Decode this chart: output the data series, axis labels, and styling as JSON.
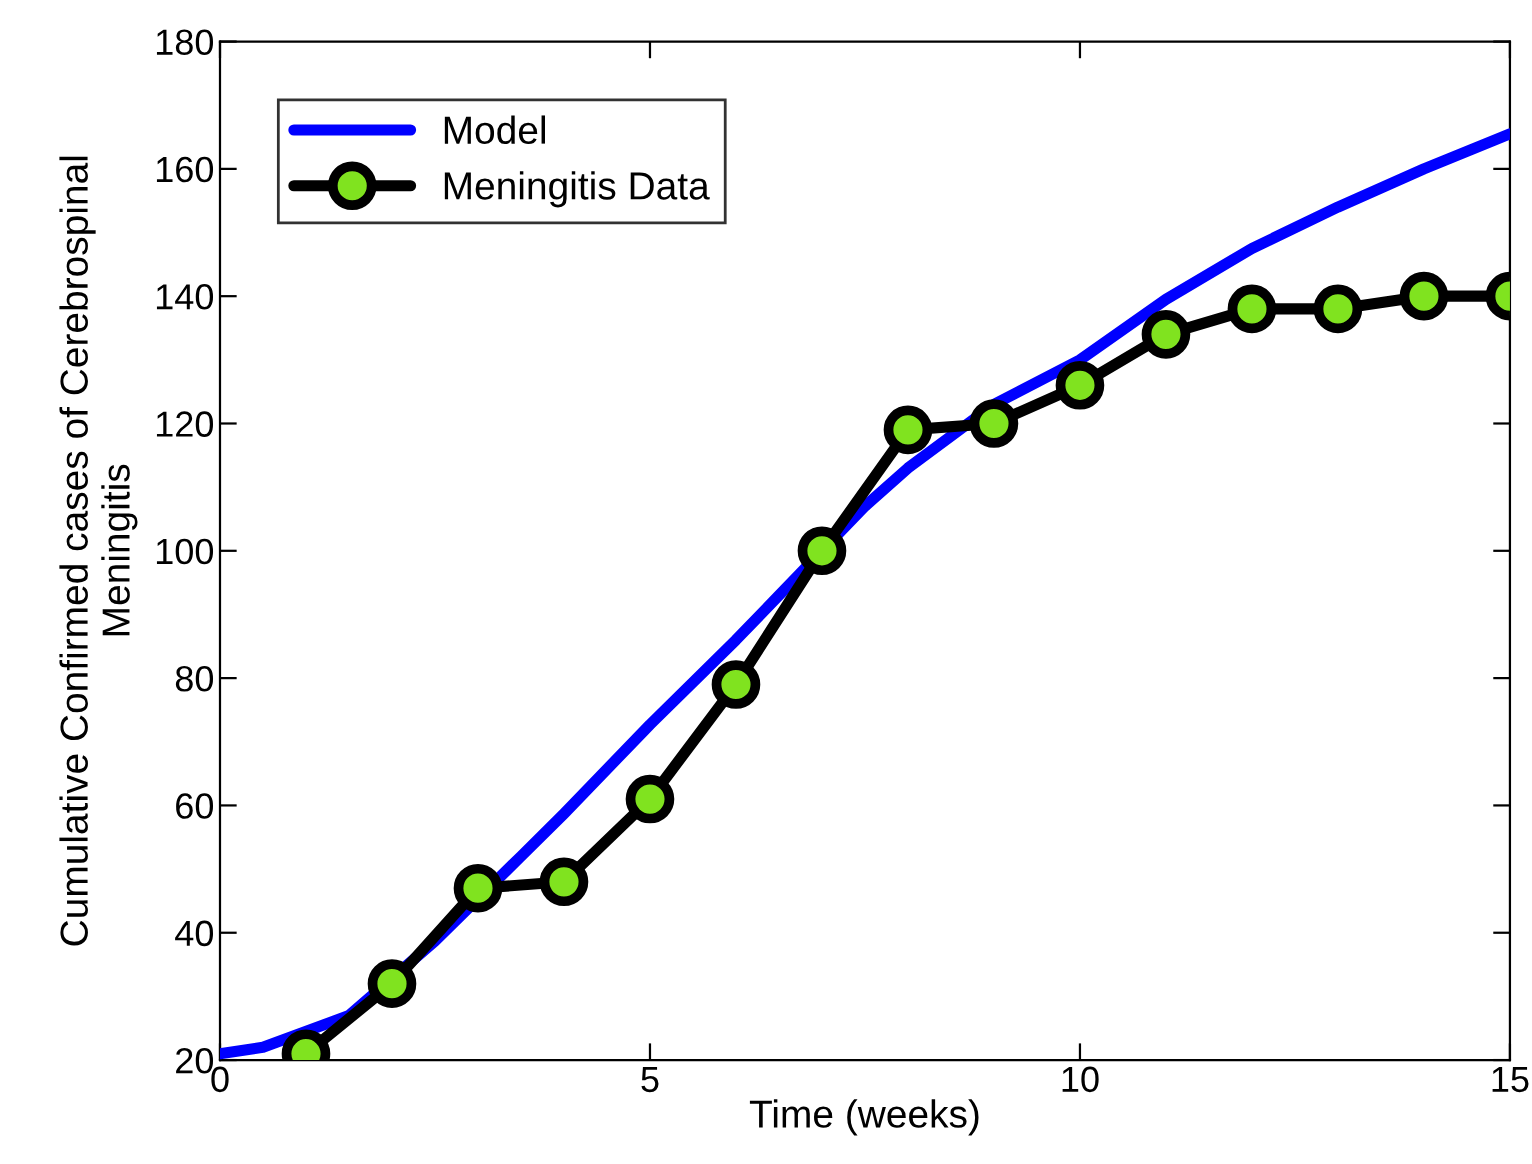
{
  "chart_data": {
    "type": "line",
    "xlabel": "Time (weeks)",
    "ylabel": "Cumulative Confirmed cases of Cerebrospinal\nMeningitis",
    "xlim": [
      0,
      15
    ],
    "ylim": [
      20,
      180
    ],
    "xticks": [
      0,
      5,
      10,
      15
    ],
    "yticks": [
      20,
      40,
      60,
      80,
      100,
      120,
      140,
      160,
      180
    ],
    "grid": false,
    "legend": "top left",
    "series": [
      {
        "name": "Model",
        "color": "#0000ff",
        "marker": "none",
        "x": [
          0,
          0.5,
          1.5,
          2.5,
          3.5,
          4,
          5,
          6,
          6.5,
          7.5,
          8,
          9,
          10,
          11,
          12,
          13,
          14,
          15
        ],
        "values": [
          21,
          22,
          27,
          38.7,
          52,
          58.7,
          72.7,
          86,
          93,
          107,
          113,
          123,
          130,
          139.5,
          147.5,
          154,
          160,
          165.5
        ]
      },
      {
        "name": "Meningitis Data",
        "color": "#000000",
        "marker": "circle",
        "x": [
          1,
          2,
          3,
          4,
          5,
          6,
          7,
          8,
          9,
          10,
          11,
          12,
          13,
          14,
          15
        ],
        "values": [
          21,
          32,
          47,
          48,
          61,
          79,
          100,
          119,
          120,
          126,
          134,
          138,
          138,
          140,
          140
        ]
      }
    ]
  }
}
